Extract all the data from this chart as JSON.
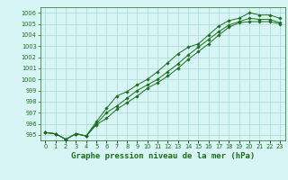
{
  "title": "Graphe pression niveau de la mer (hPa)",
  "xlabel_hours": [
    0,
    1,
    2,
    3,
    4,
    5,
    6,
    7,
    8,
    9,
    10,
    11,
    12,
    13,
    14,
    15,
    16,
    17,
    18,
    19,
    20,
    21,
    22,
    23
  ],
  "ylim": [
    994.5,
    1006.5
  ],
  "xlim": [
    -0.5,
    23.5
  ],
  "yticks": [
    995,
    996,
    997,
    998,
    999,
    1000,
    1001,
    1002,
    1003,
    1004,
    1005,
    1006
  ],
  "line1": [
    995.2,
    995.1,
    994.6,
    995.1,
    994.9,
    995.9,
    996.5,
    997.3,
    997.9,
    998.5,
    999.2,
    999.7,
    1000.3,
    1001.0,
    1001.8,
    1002.5,
    1003.2,
    1004.0,
    1004.7,
    1005.1,
    1005.2,
    1005.2,
    1005.2,
    1005.0
  ],
  "line2": [
    995.2,
    995.1,
    994.6,
    995.1,
    994.9,
    996.2,
    997.4,
    998.5,
    998.9,
    999.5,
    1000.0,
    1000.7,
    1001.5,
    1002.3,
    1002.9,
    1003.2,
    1004.0,
    1004.8,
    1005.3,
    1005.5,
    1006.0,
    1005.8,
    1005.8,
    1005.5
  ],
  "line3": [
    995.2,
    995.1,
    994.6,
    995.1,
    994.9,
    996.0,
    997.0,
    997.6,
    998.3,
    999.0,
    999.5,
    1000.0,
    1000.7,
    1001.4,
    1002.2,
    1002.9,
    1003.6,
    1004.3,
    1004.9,
    1005.2,
    1005.5,
    1005.4,
    1005.4,
    1005.1
  ],
  "line_color": "#1a6e1a",
  "bg_color": "#d8f5f5",
  "grid_color": "#a8d8d8",
  "marker": "D",
  "marker_size": 1.8,
  "linewidth": 0.7,
  "title_fontsize": 6.5,
  "tick_fontsize": 4.8
}
